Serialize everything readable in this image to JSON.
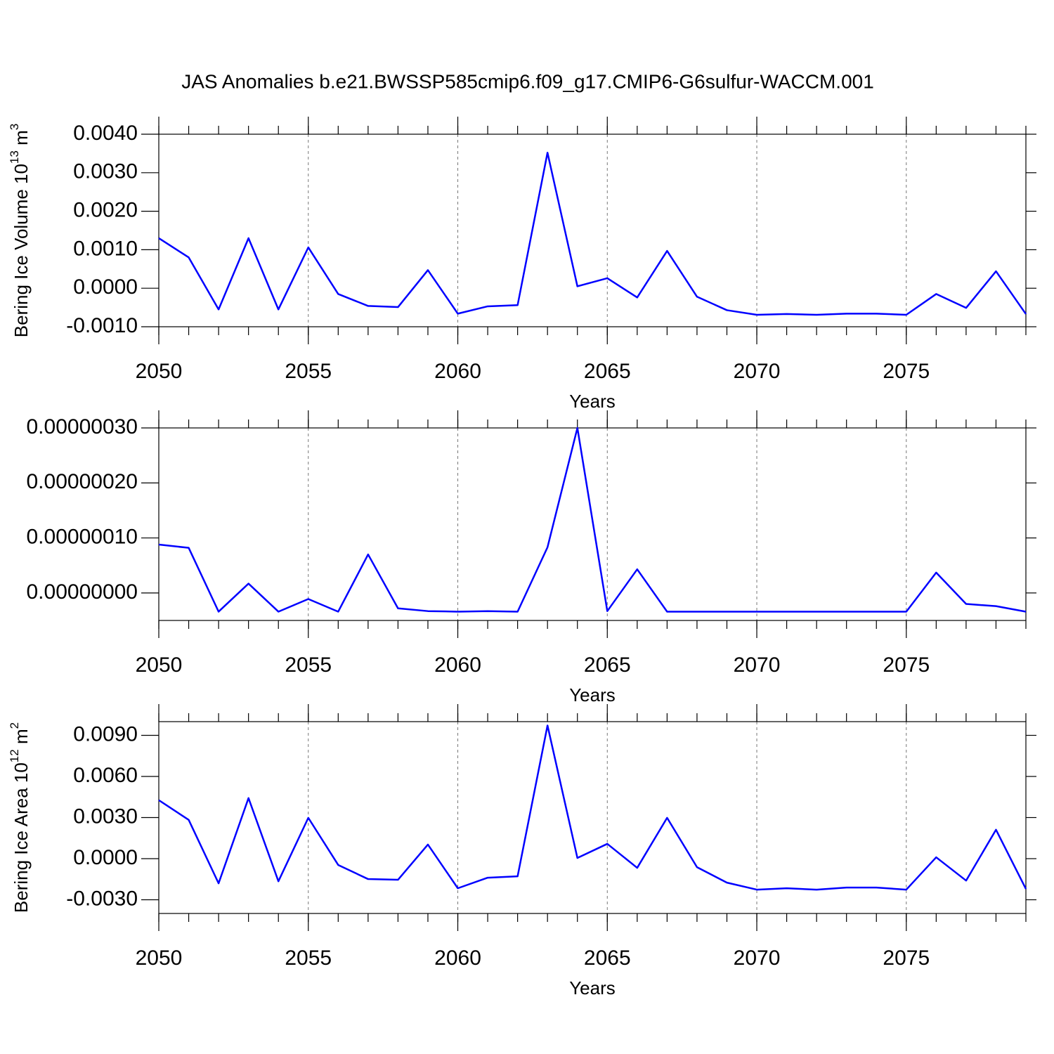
{
  "title": "JAS Anomalies b.e21.BWSSP585cmip6.f09_g17.CMIP6-G6sulfur-WACCM.001",
  "chart_data": [
    {
      "type": "line",
      "xlabel": "Years",
      "ylabel": [
        "Bering Ice Volume 10",
        "13",
        " m",
        "3"
      ],
      "x": [
        2050,
        2051,
        2052,
        2053,
        2054,
        2055,
        2056,
        2057,
        2058,
        2059,
        2060,
        2061,
        2062,
        2063,
        2064,
        2065,
        2066,
        2067,
        2068,
        2069,
        2070,
        2071,
        2072,
        2073,
        2074,
        2075,
        2076,
        2077,
        2078,
        2079
      ],
      "series": [
        {
          "color": "#0000ff",
          "values": [
            0.0013,
            0.0008,
            -0.00055,
            0.0013,
            -0.00055,
            0.00106,
            -0.00015,
            -0.00046,
            -0.00049,
            0.00047,
            -0.00066,
            -0.00047,
            -0.00044,
            0.00352,
            5e-05,
            0.00026,
            -0.00024,
            0.00097,
            -0.00022,
            -0.00057,
            -0.00069,
            -0.00067,
            -0.00069,
            -0.00066,
            -0.00066,
            -0.00069,
            -0.00015,
            -0.00051,
            0.00044,
            -0.00067
          ]
        }
      ],
      "xlim": [
        2050,
        2079
      ],
      "xticks": [
        2050,
        2055,
        2060,
        2065,
        2070,
        2075
      ],
      "ylim": [
        -0.001,
        0.004
      ],
      "yticks": [
        {
          "value": -0.001,
          "label": "-0.0010"
        },
        {
          "value": 0,
          "label": "0.0000"
        },
        {
          "value": 0.001,
          "label": "0.0010"
        },
        {
          "value": 0.002,
          "label": "0.0020"
        },
        {
          "value": 0.003,
          "label": "0.0030"
        },
        {
          "value": 0.004,
          "label": "0.0040"
        }
      ],
      "grid": "x"
    },
    {
      "type": "line",
      "xlabel": "Years",
      "x": [
        2050,
        2051,
        2052,
        2053,
        2054,
        2055,
        2056,
        2057,
        2058,
        2059,
        2060,
        2061,
        2062,
        2063,
        2064,
        2065,
        2066,
        2067,
        2068,
        2069,
        2070,
        2071,
        2072,
        2073,
        2074,
        2075,
        2076,
        2077,
        2078,
        2079
      ],
      "series": [
        {
          "color": "#0000ff",
          "values": [
            8.8e-08,
            8.2e-08,
            -3.4e-08,
            1.7e-08,
            -3.4e-08,
            -1.1e-08,
            -3.4e-08,
            7e-08,
            -2.8e-08,
            -3.3e-08,
            -3.4e-08,
            -3.3e-08,
            -3.4e-08,
            8.3e-08,
            3e-07,
            -3.3e-08,
            4.3e-08,
            -3.4e-08,
            -3.4e-08,
            -3.4e-08,
            -3.4e-08,
            -3.4e-08,
            -3.4e-08,
            -3.4e-08,
            -3.4e-08,
            -3.4e-08,
            3.7e-08,
            -2e-08,
            -2.4e-08,
            -3.4e-08
          ]
        }
      ],
      "xlim": [
        2050,
        2079
      ],
      "xticks": [
        2050,
        2055,
        2060,
        2065,
        2070,
        2075
      ],
      "ylim": [
        -5e-08,
        3e-07
      ],
      "yticks": [
        {
          "value": 0,
          "label": "0.00000000"
        },
        {
          "value": 1e-07,
          "label": "0.00000010"
        },
        {
          "value": 2e-07,
          "label": "0.00000020"
        },
        {
          "value": 3e-07,
          "label": "0.00000030"
        }
      ],
      "grid": "x"
    },
    {
      "type": "line",
      "xlabel": "Years",
      "ylabel": [
        "Bering Ice Area 10",
        "12",
        " m",
        "2"
      ],
      "x": [
        2050,
        2051,
        2052,
        2053,
        2054,
        2055,
        2056,
        2057,
        2058,
        2059,
        2060,
        2061,
        2062,
        2063,
        2064,
        2065,
        2066,
        2067,
        2068,
        2069,
        2070,
        2071,
        2072,
        2073,
        2074,
        2075,
        2076,
        2077,
        2078,
        2079
      ],
      "series": [
        {
          "color": "#0000ff",
          "values": [
            0.00427,
            0.00283,
            -0.0018,
            0.00442,
            -0.00165,
            0.00298,
            -0.00046,
            -0.00149,
            -0.00154,
            0.00103,
            -0.00216,
            -0.00139,
            -0.00129,
            0.00972,
            5e-05,
            0.00108,
            -0.00067,
            0.00298,
            -0.00062,
            -0.00175,
            -0.00226,
            -0.00216,
            -0.00226,
            -0.00211,
            -0.00211,
            -0.00226,
            0.0001,
            -0.0016,
            0.00211,
            -0.00221
          ]
        }
      ],
      "xlim": [
        2050,
        2079
      ],
      "xticks": [
        2050,
        2055,
        2060,
        2065,
        2070,
        2075
      ],
      "ylim": [
        -0.004,
        0.01
      ],
      "yticks": [
        {
          "value": -0.003,
          "label": "-0.0030"
        },
        {
          "value": 0,
          "label": "0.0000"
        },
        {
          "value": 0.003,
          "label": "0.0030"
        },
        {
          "value": 0.006,
          "label": "0.0060"
        },
        {
          "value": 0.009,
          "label": "0.0090"
        }
      ],
      "grid": "x"
    }
  ]
}
